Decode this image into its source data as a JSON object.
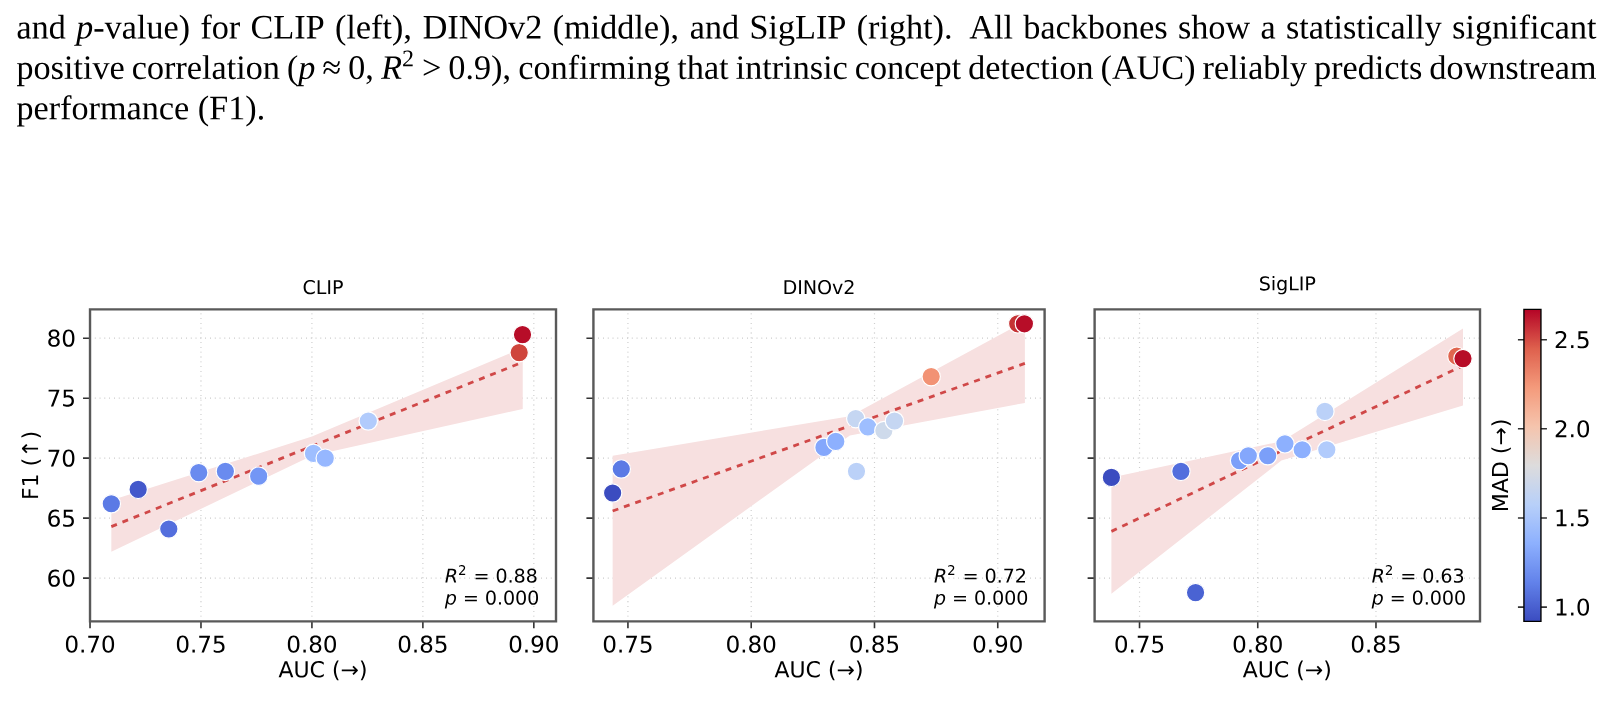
{
  "chart_data": [
    {
      "type": "other",
      "annotations": [
        "and *p*-value) for CLIP (left), DINOv2 (middle), and SigLIP (right). All backbones show a statistically significant positive correlation (*p* ≈ 0, *R*$^{2}$ > 0.9), confirming that intrinsic concept detection (AUC) reliably predicts downstream performance (F1)."
      ]
    },
    {
      "type": "scatter",
      "title": "CLIP",
      "xlabel": "AUC (→)",
      "ylabel": "F1 (↑)",
      "xlim": [
        0.7,
        0.91
      ],
      "ylim": [
        56.4,
        82.4
      ],
      "xticks": [
        {
          "value": 0.7,
          "label": "0.70"
        },
        {
          "value": 0.75,
          "label": "0.75"
        },
        {
          "value": 0.8,
          "label": "0.80"
        },
        {
          "value": 0.85,
          "label": "0.85"
        },
        {
          "value": 0.9,
          "label": "0.90"
        }
      ],
      "yticks": [
        60,
        65,
        70,
        75,
        80
      ],
      "grid": true,
      "annotations": [
        "*R*$^{2}$ = 0.88",
        "*p* = 0.000"
      ],
      "series": [
        {
          "type": "line",
          "color": "#d04848",
          "line_style": "dashed",
          "marker": "none",
          "x": [
            0.7096,
            0.8,
            0.895
          ],
          "values": [
            64.3,
            71.0,
            78.0
          ],
          "lower": [
            62.2,
            70.2,
            74.1
          ],
          "upper": [
            66.5,
            71.8,
            79.2
          ]
        },
        {
          "type": "scatter",
          "marker": "circle",
          "x": [
            0.7096,
            0.7217,
            0.7355,
            0.749,
            0.761,
            0.776,
            0.8007,
            0.806,
            0.8254,
            0.8934,
            0.8949
          ],
          "values": [
            66.2,
            67.4,
            64.1,
            68.8,
            68.9,
            68.5,
            70.4,
            70.0,
            73.1,
            78.8,
            80.3
          ],
          "colors": [
            "#5b7ae5",
            "#4358cb",
            "#536edd",
            "#6a8bef",
            "#6a8bef",
            "#7396f5",
            "#9ebeff",
            "#96b7ff",
            "#b1cbfc",
            "#cf453c",
            "#b70d28"
          ]
        }
      ]
    },
    {
      "type": "scatter",
      "title": "DINOv2",
      "xlabel": "AUC (→)",
      "xlim": [
        0.736,
        0.919
      ],
      "ylim": [
        56.4,
        82.4
      ],
      "tick_labels": "x",
      "xticks": [
        {
          "value": 0.75,
          "label": "0.75"
        },
        {
          "value": 0.8,
          "label": "0.80"
        },
        {
          "value": 0.85,
          "label": "0.85"
        },
        {
          "value": 0.9,
          "label": "0.90"
        }
      ],
      "yticks": [
        60,
        65,
        70,
        75,
        80
      ],
      "grid": true,
      "annotations": [
        "*R*$^{2}$ = 0.72",
        "*p* = 0.000"
      ],
      "series": [
        {
          "type": "line",
          "color": "#d04848",
          "line_style": "dashed",
          "marker": "none",
          "x": [
            0.7438,
            0.84,
            0.911
          ],
          "values": [
            65.6,
            72.7,
            77.9
          ],
          "lower": [
            57.7,
            71.9,
            74.6
          ],
          "upper": [
            70.2,
            73.5,
            81.4
          ]
        },
        {
          "type": "scatter",
          "marker": "circle",
          "x": [
            0.7438,
            0.7473,
            0.8295,
            0.8343,
            0.8424,
            0.8427,
            0.8473,
            0.8538,
            0.8581,
            0.873,
            0.9081,
            0.9108
          ],
          "values": [
            67.1,
            69.1,
            70.9,
            71.4,
            73.3,
            68.9,
            72.6,
            72.3,
            73.1,
            76.8,
            81.2,
            81.2
          ],
          "colors": [
            "#3b4cc0",
            "#5b7ae5",
            "#84a7fc",
            "#8db0fe",
            "#c5d6f2",
            "#bbd1f8",
            "#9ebeff",
            "#cedaeb",
            "#c5d6f2",
            "#f29274",
            "#c53334",
            "#b70d28"
          ]
        }
      ]
    },
    {
      "type": "scatter",
      "title": "SigLIP",
      "xlabel": "AUC (→)",
      "xlim": [
        0.731,
        0.894
      ],
      "ylim": [
        56.4,
        82.4
      ],
      "tick_labels": "x",
      "xticks": [
        {
          "value": 0.75,
          "label": "0.75"
        },
        {
          "value": 0.8,
          "label": "0.80"
        },
        {
          "value": 0.85,
          "label": "0.85"
        }
      ],
      "yticks": [
        60,
        65,
        70,
        75,
        80
      ],
      "grid": true,
      "clim": [
        0.92,
        2.67
      ],
      "clabel": "MAD (→)",
      "cticks": [
        {
          "value": 1,
          "label": "1.0"
        },
        1.5,
        {
          "value": 2,
          "label": "2.0"
        },
        2.5
      ],
      "annotations": [
        "*R*$^{2}$ = 0.63",
        "*p* = 0.000"
      ],
      "series": [
        {
          "type": "line",
          "color": "#d04848",
          "line_style": "dashed",
          "marker": "none",
          "x": [
            0.7381,
            0.81,
            0.8868
          ],
          "values": [
            63.9,
            70.6,
            77.7
          ],
          "lower": [
            58.7,
            69.8,
            74.4
          ],
          "upper": [
            68.4,
            71.4,
            80.8
          ]
        },
        {
          "type": "scatter",
          "marker": "circle",
          "x": [
            0.7381,
            0.7675,
            0.7737,
            0.7923,
            0.796,
            0.8042,
            0.8115,
            0.8188,
            0.8284,
            0.8292,
            0.8842,
            0.8868
          ],
          "values": [
            68.4,
            68.9,
            58.8,
            69.8,
            70.2,
            70.2,
            71.2,
            70.7,
            73.9,
            70.7,
            78.5,
            78.3
          ],
          "colors": [
            "#3b4cc0",
            "#536edd",
            "#4a63d3",
            "#7b9ff9",
            "#84a7fc",
            "#7b9ff9",
            "#8db0fe",
            "#8db0fe",
            "#bbd1f8",
            "#b1cbfc",
            "#e0654f",
            "#b70d28"
          ]
        }
      ]
    }
  ]
}
